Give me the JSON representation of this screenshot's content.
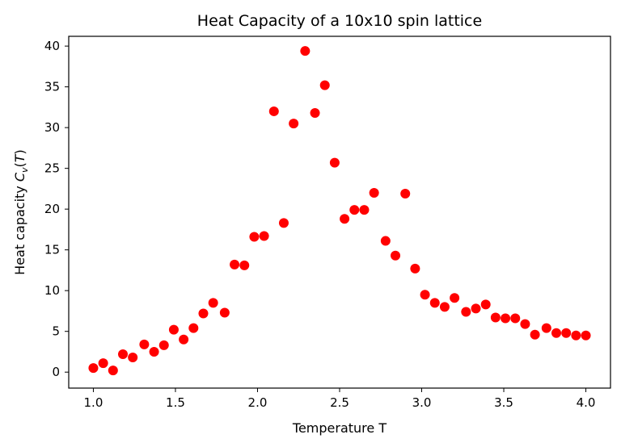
{
  "chart_data": {
    "type": "scatter",
    "title": "Heat Capacity of a 10x10 spin lattice",
    "xlabel": "Temperature T",
    "ylabel": "Heat capacity C_v(T)",
    "xlim": [
      0.85,
      4.15
    ],
    "ylim": [
      -1.96,
      41.2
    ],
    "xticks": [
      1.0,
      1.5,
      2.0,
      2.5,
      3.0,
      3.5,
      4.0
    ],
    "xtick_labels": [
      "1.0",
      "1.5",
      "2.0",
      "2.5",
      "3.0",
      "3.5",
      "4.0"
    ],
    "yticks": [
      0,
      5,
      10,
      15,
      20,
      25,
      30,
      35,
      40
    ],
    "ytick_labels": [
      "0",
      "5",
      "10",
      "15",
      "20",
      "25",
      "30",
      "35",
      "40"
    ],
    "grid": false,
    "marker_color": "#ff0000",
    "series": [
      {
        "x": [
          1.0,
          1.06,
          1.12,
          1.18,
          1.24,
          1.31,
          1.37,
          1.43,
          1.49,
          1.55,
          1.61,
          1.67,
          1.73,
          1.8,
          1.86,
          1.92,
          1.98,
          2.04,
          2.1,
          2.16,
          2.22,
          2.29,
          2.35,
          2.41,
          2.47,
          2.53,
          2.59,
          2.65,
          2.71,
          2.78,
          2.84,
          2.9,
          2.96,
          3.02,
          3.08,
          3.14,
          3.2,
          3.27,
          3.33,
          3.39,
          3.45,
          3.51,
          3.57,
          3.63,
          3.69,
          3.76,
          3.82,
          3.88,
          3.94,
          4.0
        ],
        "y": [
          0.5,
          1.1,
          0.2,
          2.2,
          1.8,
          3.4,
          2.5,
          3.3,
          5.2,
          4.0,
          5.4,
          7.2,
          8.5,
          7.3,
          13.2,
          13.1,
          16.6,
          16.7,
          32.0,
          18.3,
          30.5,
          39.4,
          31.8,
          35.2,
          25.7,
          18.8,
          19.9,
          19.9,
          22.0,
          16.1,
          14.3,
          21.9,
          12.7,
          9.5,
          8.5,
          8.0,
          9.1,
          7.4,
          7.8,
          8.3,
          6.7,
          6.6,
          6.6,
          5.9,
          4.6,
          5.4,
          4.8,
          4.8,
          4.5,
          4.5
        ]
      }
    ]
  }
}
